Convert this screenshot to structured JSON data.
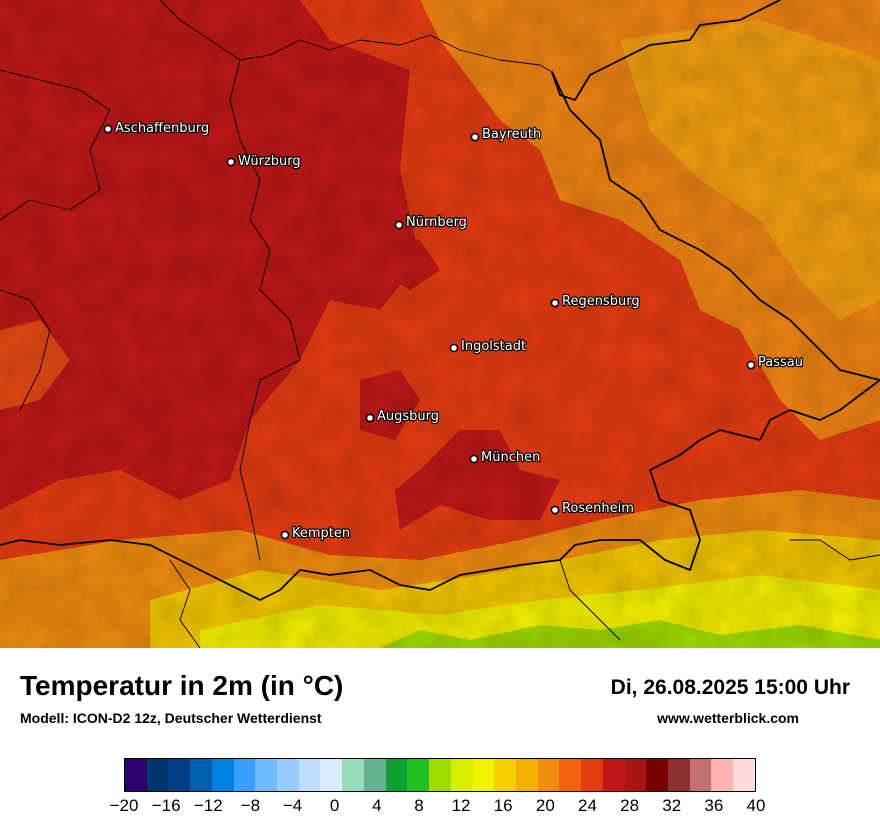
{
  "map": {
    "cities": [
      {
        "name": "Aschaffenburg"
      },
      {
        "name": "Bayreuth"
      },
      {
        "name": "Würzburg"
      },
      {
        "name": "Nürnberg"
      },
      {
        "name": "Regensburg"
      },
      {
        "name": "Ingolstadt"
      },
      {
        "name": "Passau"
      },
      {
        "name": "Augsburg"
      },
      {
        "name": "München"
      },
      {
        "name": "Rosenheim"
      },
      {
        "name": "Kempten"
      }
    ]
  },
  "footer": {
    "title": "Temperatur in 2m (in °C)",
    "subtitle": "Modell: ICON-D2 12z, Deutscher Wetterdienst",
    "datetime": "Di, 26.08.2025 15:00 Uhr",
    "website": "www.wetterblick.com"
  },
  "legend": {
    "colors": [
      "#2d0070",
      "#00366c",
      "#003e84",
      "#0060b0",
      "#0080e0",
      "#3aa0ff",
      "#70b8ff",
      "#9acbff",
      "#c0dcff",
      "#dcecff",
      "#98dcc0",
      "#64b090",
      "#10a030",
      "#20c020",
      "#a0dc00",
      "#d8f000",
      "#f4f400",
      "#f4d000",
      "#f4b000",
      "#f08c10",
      "#f06410",
      "#e43c10",
      "#c01818",
      "#a81414",
      "#780000",
      "#8c3030",
      "#c47070",
      "#ffb4b4",
      "#ffdcdc"
    ],
    "ticks": [
      "−20",
      "−16",
      "−12",
      "−8",
      "−4",
      "0",
      "4",
      "8",
      "12",
      "16",
      "20",
      "24",
      "28",
      "32",
      "36",
      "40"
    ]
  }
}
